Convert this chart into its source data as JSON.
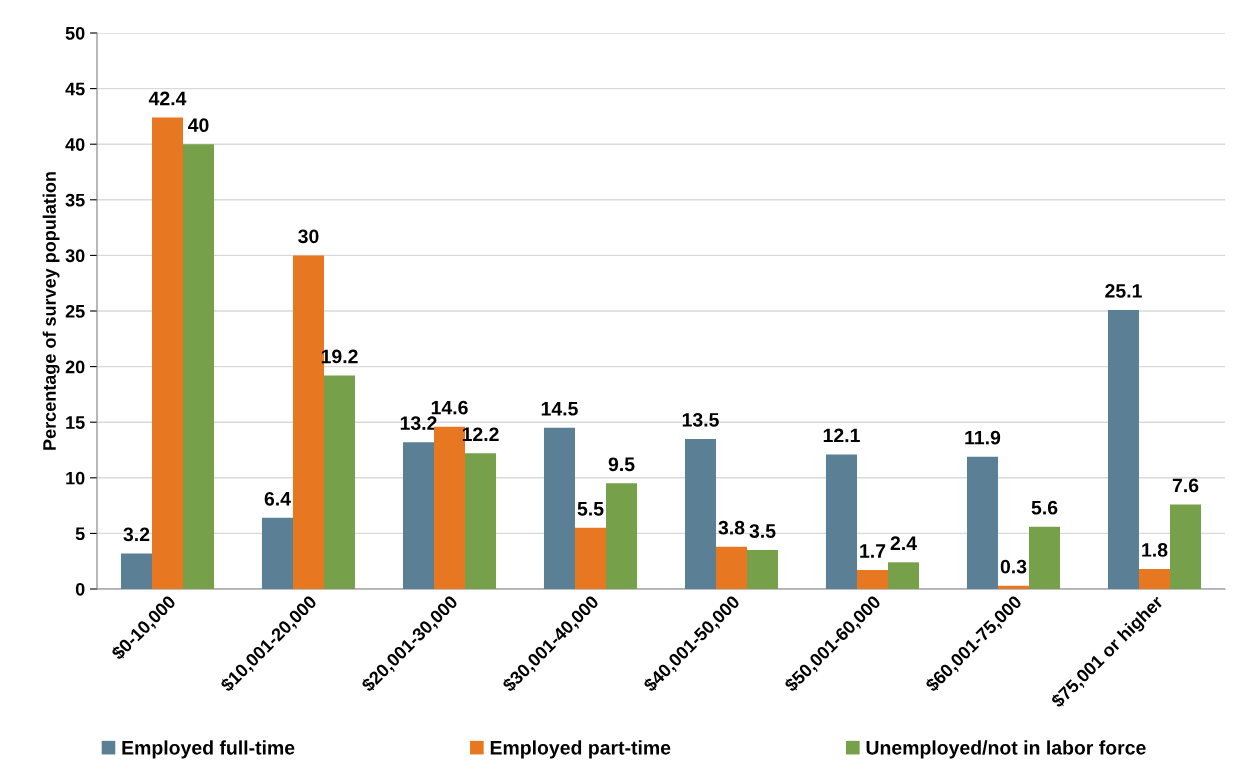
{
  "chart_data": {
    "type": "bar",
    "ylabel": "Percentage of survey population",
    "categories": [
      "$0-10,000",
      "$10,001-20,000",
      "$20,001-30,000",
      "$30,001-40,000",
      "$40,001-50,000",
      "$50,001-60,000",
      "$60,001-75,000",
      "$75,001 or higher"
    ],
    "series": [
      {
        "name": "Employed full-time",
        "color": "#5b7f95",
        "values": [
          3.2,
          6.4,
          13.2,
          14.5,
          13.5,
          12.1,
          11.9,
          25.1
        ]
      },
      {
        "name": "Employed part-time",
        "color": "#e87722",
        "values": [
          42.4,
          30,
          14.6,
          5.5,
          3.8,
          1.7,
          0.3,
          1.8
        ]
      },
      {
        "name": "Unemployed/not in labor force",
        "color": "#77a04b",
        "values": [
          40,
          19.2,
          12.2,
          9.5,
          3.5,
          2.4,
          5.6,
          7.6
        ]
      }
    ],
    "ylim": [
      0,
      50
    ],
    "yticks": [
      0,
      5,
      10,
      15,
      20,
      25,
      30,
      35,
      40,
      45,
      50
    ],
    "grid": "y",
    "legend": "bottom",
    "data_labels": true
  }
}
